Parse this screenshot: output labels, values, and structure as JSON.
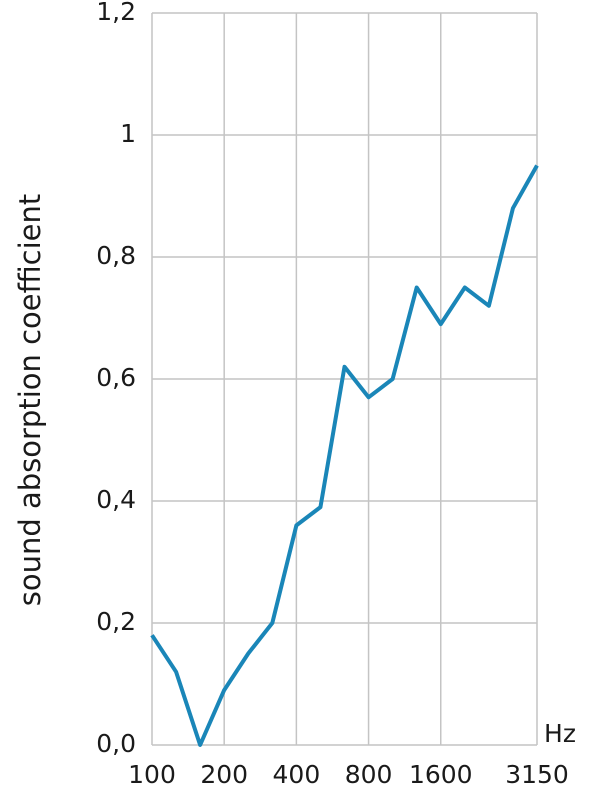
{
  "chart_data": {
    "type": "line",
    "ylabel": "sound absorption coefficient",
    "xlabel": "Hz",
    "categories": [
      "100",
      null,
      null,
      "200",
      null,
      null,
      "400",
      null,
      null,
      "800",
      null,
      null,
      "1600",
      null,
      null,
      null,
      "3150"
    ],
    "series": [
      {
        "color": "#1a86b8",
        "values": [
          0.18,
          0.12,
          0.0,
          0.09,
          0.15,
          0.2,
          0.36,
          0.39,
          0.62,
          0.57,
          0.6,
          0.75,
          0.69,
          0.75,
          0.72,
          0.88,
          0.95
        ]
      }
    ],
    "ylim": [
      0,
      1.2
    ],
    "yticks": [
      {
        "value": 0,
        "label": "0,0"
      },
      {
        "value": 0.2,
        "label": "0,2"
      },
      {
        "value": 0.4,
        "label": "0,4"
      },
      {
        "value": 0.6,
        "label": "0,6"
      },
      {
        "value": 0.8,
        "label": "0,8"
      },
      1,
      {
        "value": 1.2,
        "label": "1,2"
      }
    ],
    "grid": true
  }
}
